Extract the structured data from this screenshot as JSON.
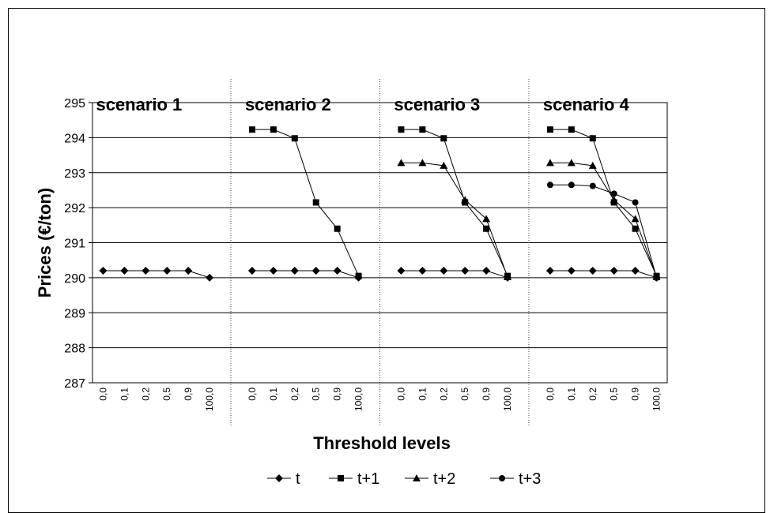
{
  "chart_data": {
    "type": "line",
    "ylabel": "Prices (€/ton)",
    "xlabel": "Threshold levels",
    "ylim": [
      287,
      295
    ],
    "yticks": [
      "287",
      "288",
      "289",
      "290",
      "291",
      "292",
      "293",
      "294",
      "295"
    ],
    "categories": [
      "0,0",
      "0,1",
      "0,2",
      "0,5",
      "0,9",
      "100,0"
    ],
    "grid": true,
    "legend_position": "bottom",
    "legend": [
      "t",
      "t+1",
      "t+2",
      "t+3"
    ],
    "panels": [
      {
        "title": "scenario 1",
        "series": [
          {
            "name": "t",
            "marker": "diamond",
            "values": [
              290.2,
              290.2,
              290.2,
              290.2,
              290.2,
              290.0
            ]
          }
        ]
      },
      {
        "title": "scenario 2",
        "series": [
          {
            "name": "t",
            "marker": "diamond",
            "values": [
              290.2,
              290.2,
              290.2,
              290.2,
              290.2,
              290.0
            ]
          },
          {
            "name": "t+1",
            "marker": "square",
            "values": [
              294.23,
              294.23,
              293.98,
              292.15,
              291.4,
              290.05
            ]
          }
        ]
      },
      {
        "title": "scenario 3",
        "series": [
          {
            "name": "t",
            "marker": "diamond",
            "values": [
              290.2,
              290.2,
              290.2,
              290.2,
              290.2,
              290.0
            ]
          },
          {
            "name": "t+1",
            "marker": "square",
            "values": [
              294.23,
              294.23,
              293.98,
              292.15,
              291.4,
              290.05
            ]
          },
          {
            "name": "t+2",
            "marker": "triangle",
            "values": [
              293.28,
              293.28,
              293.2,
              292.22,
              291.68,
              290.02
            ]
          }
        ]
      },
      {
        "title": "scenario 4",
        "series": [
          {
            "name": "t",
            "marker": "diamond",
            "values": [
              290.2,
              290.2,
              290.2,
              290.2,
              290.2,
              290.0
            ]
          },
          {
            "name": "t+1",
            "marker": "square",
            "values": [
              294.23,
              294.23,
              293.98,
              292.15,
              291.4,
              290.05
            ]
          },
          {
            "name": "t+2",
            "marker": "triangle",
            "values": [
              293.28,
              293.28,
              293.2,
              292.22,
              291.68,
              290.02
            ]
          },
          {
            "name": "t+3",
            "marker": "circle",
            "values": [
              292.65,
              292.65,
              292.62,
              292.4,
              292.15,
              290.0
            ]
          }
        ]
      }
    ]
  }
}
